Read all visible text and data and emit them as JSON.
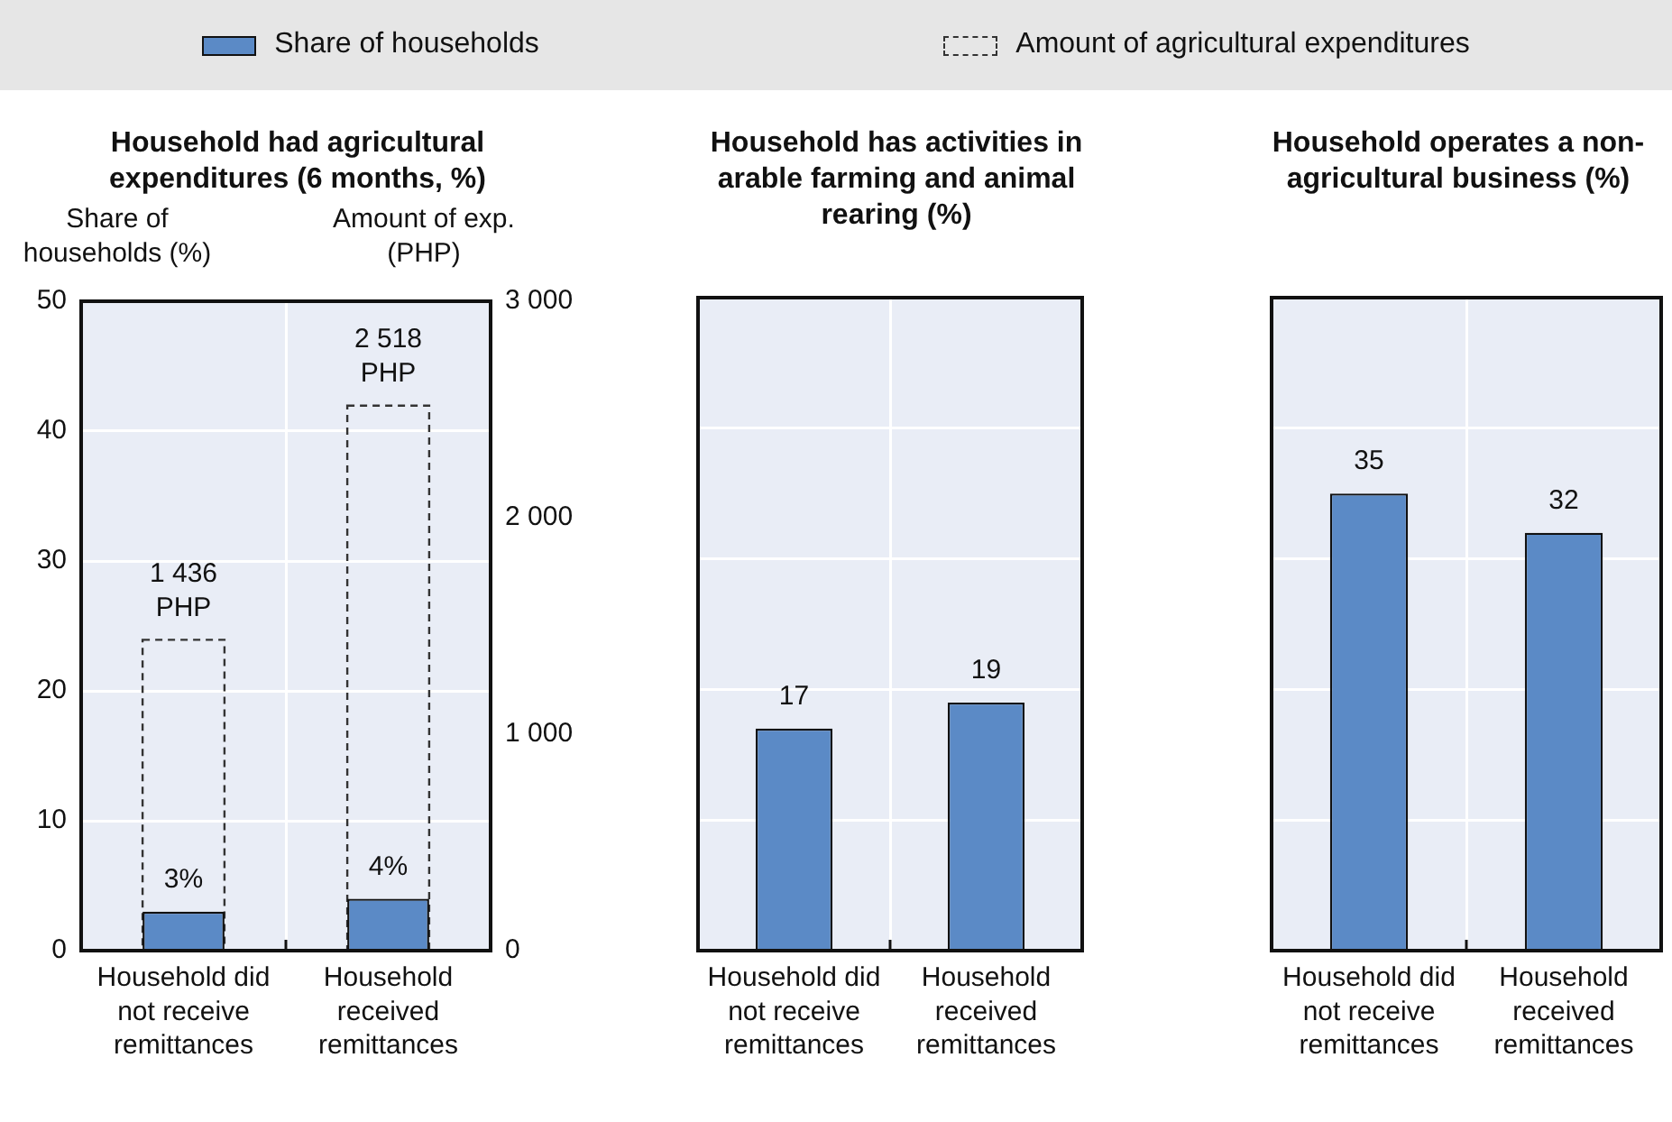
{
  "chart_data": [
    {
      "type": "bar",
      "title": "Household had agricultural expenditures (6 months, %)",
      "ylabel": "Share of households (%)",
      "y2label": "Amount of exp. (PHP)",
      "categories": [
        "Household did not receive remittances",
        "Household received remittances"
      ],
      "series": [
        {
          "name": "Share of households",
          "color": "#5b8ac6",
          "values": [
            3,
            4
          ],
          "value_labels": [
            "3%",
            "4%"
          ]
        },
        {
          "name": "Amount of agricultural expenditures",
          "color": "#333333",
          "values": [
            1436,
            2518
          ],
          "axis": "y2",
          "line_style": "dashed",
          "value_labels": [
            "1 436\nPHP",
            "2 518\nPHP"
          ]
        }
      ],
      "ylim": [
        0,
        50
      ],
      "yticks": [
        0,
        10,
        20,
        30,
        40,
        50
      ],
      "y2lim": [
        0,
        3000
      ],
      "y2ticks": [
        0,
        {
          "value": 1000,
          "label": "1 000"
        },
        {
          "value": 2000,
          "label": "2 000"
        },
        {
          "value": 3000,
          "label": "3 000"
        }
      ],
      "grid": true,
      "legend": "top"
    },
    {
      "type": "bar",
      "title": "Household has activities in arable farming and animal rearing (%)",
      "categories": [
        "Household did not receive remittances",
        "Household received remittances"
      ],
      "series": [
        {
          "color": "#5b8ac6",
          "values": [
            17,
            19
          ]
        }
      ],
      "ylim": [
        0,
        50
      ],
      "yticks": [
        0,
        10,
        20,
        30,
        40,
        50
      ],
      "grid": true,
      "data_labels": true,
      "tick_labels": "x"
    },
    {
      "type": "bar",
      "title": "Household operates a non-agricultural business (%)",
      "categories": [
        "Household did not receive remittances",
        "Household received remittances"
      ],
      "series": [
        {
          "color": "#5b8ac6",
          "values": [
            35,
            32
          ]
        }
      ],
      "ylim": [
        0,
        50
      ],
      "yticks": [
        0,
        10,
        20,
        30,
        40,
        50
      ],
      "grid": true,
      "data_labels": true,
      "tick_labels": "x"
    }
  ]
}
